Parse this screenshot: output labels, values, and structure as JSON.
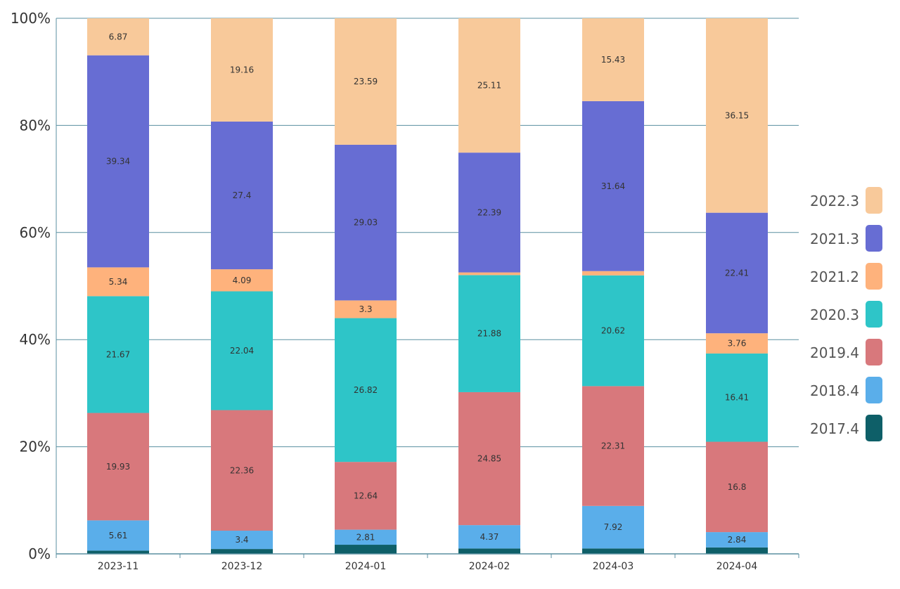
{
  "chart_data": {
    "type": "bar",
    "stacked": true,
    "normalized": true,
    "title": "",
    "xlabel": "",
    "ylabel": "",
    "ylim": [
      0,
      100
    ],
    "y_ticks": [
      "0%",
      "20%",
      "40%",
      "60%",
      "80%",
      "100%"
    ],
    "categories": [
      "2023-11",
      "2023-12",
      "2024-01",
      "2024-02",
      "2024-03",
      "2024-04"
    ],
    "series": [
      {
        "name": "2017.4",
        "color": "#0e5f68",
        "values": [
          0.6,
          0.9,
          1.7,
          1.0,
          1.0,
          1.2
        ],
        "labels": [
          "",
          "",
          "",
          "",
          "",
          ""
        ]
      },
      {
        "name": "2018.4",
        "color": "#5aaeea",
        "values": [
          5.61,
          3.4,
          2.81,
          4.37,
          7.92,
          2.84
        ],
        "labels": [
          "5.61",
          "3.4",
          "2.81",
          "4.37",
          "7.92",
          "2.84"
        ]
      },
      {
        "name": "2019.4",
        "color": "#d8787c",
        "values": [
          19.93,
          22.36,
          12.64,
          24.85,
          22.31,
          16.8
        ],
        "labels": [
          "19.93",
          "22.36",
          "12.64",
          "24.85",
          "22.31",
          "16.8"
        ]
      },
      {
        "name": "2020.3",
        "color": "#2ec5c8",
        "values": [
          21.67,
          22.04,
          26.82,
          21.88,
          20.62,
          16.41
        ],
        "labels": [
          "21.67",
          "22.04",
          "26.82",
          "21.88",
          "20.62",
          "16.41"
        ]
      },
      {
        "name": "2021.2",
        "color": "#feb27c",
        "values": [
          5.34,
          4.09,
          3.3,
          0.5,
          0.8,
          3.76
        ],
        "labels": [
          "5.34",
          "4.09",
          "3.3",
          "",
          "",
          "3.76"
        ]
      },
      {
        "name": "2021.3",
        "color": "#676dd3",
        "values": [
          39.34,
          27.4,
          29.03,
          22.39,
          31.64,
          22.41
        ],
        "labels": [
          "39.34",
          "27.4",
          "29.03",
          "22.39",
          "31.64",
          "22.41"
        ]
      },
      {
        "name": "2022.3",
        "color": "#f8c99a",
        "values": [
          6.87,
          19.16,
          23.59,
          25.11,
          15.43,
          36.15
        ],
        "labels": [
          "6.87",
          "19.16",
          "23.59",
          "25.11",
          "15.43",
          "36.15"
        ]
      }
    ],
    "legend": {
      "position": "right",
      "order": [
        "2022.3",
        "2021.3",
        "2021.2",
        "2020.3",
        "2019.4",
        "2018.4",
        "2017.4"
      ]
    },
    "grid": true
  }
}
